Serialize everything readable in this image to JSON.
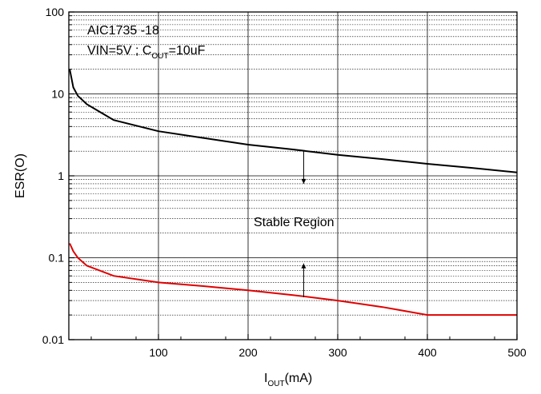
{
  "chart_data": {
    "type": "line",
    "xlabel": {
      "main": "I",
      "sub": "OUT",
      "rest": "(mA)"
    },
    "ylabel": "ESR(O)",
    "xlim": [
      0,
      500
    ],
    "ylim": [
      0.01,
      100
    ],
    "y_scale": "log",
    "grid": true,
    "x_ticks": [
      100,
      200,
      300,
      400,
      500
    ],
    "x_tick_labels": [
      "100",
      "200",
      "300",
      "400",
      "500"
    ],
    "y_ticks": [
      0.01,
      0.1,
      1,
      10,
      100
    ],
    "y_tick_labels": [
      "0.01",
      "0.1",
      "1",
      "10",
      "100"
    ],
    "annotations": {
      "line1": "AIC1735 -18",
      "line2_a": "VIN=5V ; C",
      "line2_sub": "OUT",
      "line2_b": "=10uF",
      "region": "Stable Region"
    },
    "series": [
      {
        "color": "#000000",
        "x": [
          1,
          5,
          10,
          20,
          50,
          100,
          150,
          200,
          250,
          300,
          350,
          400,
          450,
          500
        ],
        "y": [
          20,
          12,
          9.5,
          7.5,
          4.8,
          3.5,
          2.9,
          2.4,
          2.1,
          1.8,
          1.6,
          1.4,
          1.25,
          1.1
        ]
      },
      {
        "color": "#e00000",
        "x": [
          1,
          5,
          10,
          20,
          50,
          100,
          150,
          200,
          250,
          300,
          350,
          400,
          450,
          500
        ],
        "y": [
          0.15,
          0.12,
          0.1,
          0.08,
          0.06,
          0.05,
          0.045,
          0.04,
          0.035,
          0.03,
          0.025,
          0.02,
          0.02,
          0.02
        ]
      }
    ],
    "arrows": [
      {
        "x": 262,
        "y_from": 2.0,
        "y_to": 0.8,
        "direction": "down"
      },
      {
        "x": 262,
        "y_from": 0.033,
        "y_to": 0.085,
        "direction": "up"
      }
    ]
  }
}
